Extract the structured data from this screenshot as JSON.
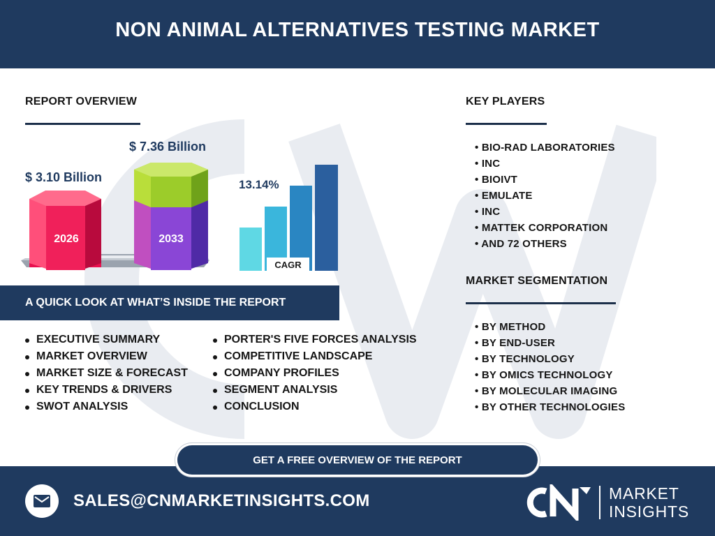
{
  "header": {
    "title": "NON ANIMAL ALTERNATIVES TESTING MARKET"
  },
  "report_overview": {
    "title": "REPORT OVERVIEW",
    "value_2026": "$ 3.10 Billion",
    "value_2033": "$ 7.36 Billion",
    "year_2026": "2026",
    "year_2033": "2033",
    "cagr_value": "13.14%",
    "cagr_label": "CAGR",
    "colors": {
      "prism_2026": "#f0205a",
      "prism_2033_top": "#9ccc2a",
      "prism_2033_bottom": "#7b3fc9",
      "cagr_bars": [
        "#5fd8e4",
        "#3ab6dc",
        "#2a86c2",
        "#2b5f9e"
      ]
    }
  },
  "quick_look": {
    "title": "A QUICK LOOK AT WHAT’S INSIDE THE REPORT",
    "col1": [
      "EXECUTIVE SUMMARY",
      "MARKET OVERVIEW",
      "MARKET SIZE & FORECAST",
      "KEY TRENDS & DRIVERS",
      "SWOT ANALYSIS"
    ],
    "col2": [
      "PORTER'S FIVE FORCES ANALYSIS",
      "COMPETITIVE LANDSCAPE",
      "COMPANY PROFILES",
      "SEGMENT ANALYSIS",
      "CONCLUSION"
    ]
  },
  "key_players": {
    "title": "KEY PLAYERS",
    "items": [
      "• BIO-RAD LABORATORIES",
      "• INC",
      "• BIOIVT",
      "• EMULATE",
      "• INC",
      "• MATTEK CORPORATION",
      "• AND 72 OTHERS"
    ]
  },
  "segmentation": {
    "title": "MARKET SEGMENTATION",
    "items": [
      "• BY METHOD",
      "• BY END-USER",
      "• BY TECHNOLOGY",
      "• BY OMICS TECHNOLOGY",
      "• BY MOLECULAR IMAGING",
      "• BY OTHER TECHNOLOGIES"
    ]
  },
  "cta": {
    "label": "GET A FREE OVERVIEW OF THE REPORT"
  },
  "footer": {
    "email": "SALES@CNMARKETINSIGHTS.COM",
    "brand_line1": "MARKET",
    "brand_line2": "INSIGHTS",
    "mail_icon": "envelope-icon",
    "logo_text": "CN"
  }
}
